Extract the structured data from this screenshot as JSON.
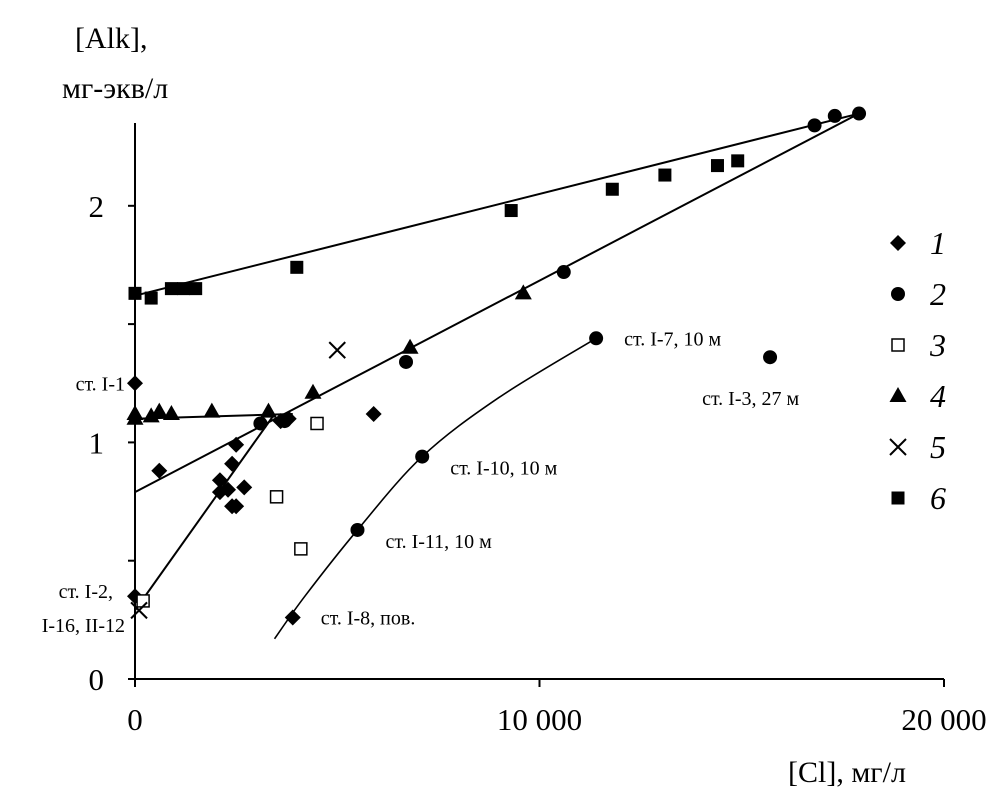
{
  "chart_data": {
    "type": "scatter",
    "title": "",
    "ylabel_line1": "[Alk],",
    "ylabel_line2": "мг-экв/л",
    "xlabel": "[Cl], мг/л",
    "xlim": [
      0,
      20000
    ],
    "ylim": [
      0,
      2.35
    ],
    "x_ticks": [
      {
        "value": 0,
        "label": "0"
      },
      {
        "value": 10000,
        "label": "10 000"
      },
      {
        "value": 20000,
        "label": "20 000"
      }
    ],
    "y_ticks": [
      {
        "value": 0,
        "label": "0",
        "labeled": true
      },
      {
        "value": 0.5,
        "label": "",
        "labeled": false
      },
      {
        "value": 1,
        "label": "1",
        "labeled": true
      },
      {
        "value": 1.5,
        "label": "",
        "labeled": false
      },
      {
        "value": 2,
        "label": "2",
        "labeled": true
      }
    ],
    "series": [
      {
        "name": "1",
        "marker": "diamond",
        "points": [
          [
            0,
            1.25
          ],
          [
            0,
            0.35
          ],
          [
            600,
            0.88
          ],
          [
            2100,
            0.84
          ],
          [
            2100,
            0.79
          ],
          [
            2300,
            0.8
          ],
          [
            2400,
            0.91
          ],
          [
            2500,
            0.99
          ],
          [
            2400,
            0.73
          ],
          [
            2500,
            0.73
          ],
          [
            2700,
            0.81
          ],
          [
            3600,
            1.09
          ],
          [
            3800,
            1.1
          ],
          [
            5900,
            1.12
          ],
          [
            3900,
            0.26
          ]
        ]
      },
      {
        "name": "2",
        "marker": "circle",
        "points": [
          [
            3100,
            1.08
          ],
          [
            3700,
            1.09
          ],
          [
            6700,
            1.34
          ],
          [
            10600,
            1.72
          ],
          [
            11400,
            1.44
          ],
          [
            7100,
            0.94
          ],
          [
            5500,
            0.63
          ],
          [
            15700,
            1.36
          ],
          [
            16800,
            2.34
          ],
          [
            17300,
            2.38
          ],
          [
            17900,
            2.39
          ]
        ]
      },
      {
        "name": "3",
        "marker": "square-open",
        "points": [
          [
            200,
            0.33
          ],
          [
            3500,
            0.77
          ],
          [
            4500,
            1.08
          ],
          [
            4100,
            0.55
          ]
        ]
      },
      {
        "name": "4",
        "marker": "triangle",
        "points": [
          [
            0,
            1.12
          ],
          [
            0,
            1.1
          ],
          [
            400,
            1.11
          ],
          [
            600,
            1.13
          ],
          [
            900,
            1.12
          ],
          [
            1900,
            1.13
          ],
          [
            3300,
            1.13
          ],
          [
            4400,
            1.21
          ],
          [
            6800,
            1.4
          ],
          [
            9600,
            1.63
          ]
        ]
      },
      {
        "name": "5",
        "marker": "cross",
        "points": [
          [
            100,
            0.29
          ],
          [
            5000,
            1.39
          ]
        ]
      },
      {
        "name": "6",
        "marker": "square",
        "points": [
          [
            0,
            1.63
          ],
          [
            400,
            1.61
          ],
          [
            900,
            1.65
          ],
          [
            1200,
            1.65
          ],
          [
            1500,
            1.65
          ],
          [
            4000,
            1.74
          ],
          [
            9300,
            1.98
          ],
          [
            11800,
            2.07
          ],
          [
            13100,
            2.13
          ],
          [
            14400,
            2.17
          ],
          [
            14900,
            2.19
          ]
        ]
      }
    ],
    "trend_lines": [
      {
        "name": "6-fit",
        "shape": "line",
        "points": [
          [
            0,
            1.62
          ],
          [
            17900,
            2.39
          ]
        ]
      },
      {
        "name": "2-fit",
        "shape": "line",
        "points": [
          [
            0,
            0.79
          ],
          [
            17900,
            2.39
          ]
        ]
      },
      {
        "name": "1-plateau-fit",
        "shape": "line",
        "points": [
          [
            0,
            1.1
          ],
          [
            3900,
            1.12
          ]
        ]
      },
      {
        "name": "1-steep-fit",
        "shape": "line",
        "points": [
          [
            0,
            0.29
          ],
          [
            3450,
            1.12
          ]
        ]
      },
      {
        "name": "station-curve",
        "shape": "curve",
        "points": [
          [
            3450,
            0.17
          ],
          [
            4200,
            0.35
          ],
          [
            5500,
            0.63
          ],
          [
            7100,
            0.94
          ],
          [
            9000,
            1.19
          ],
          [
            11400,
            1.44
          ]
        ]
      }
    ],
    "annotations": [
      {
        "text": "ст. I-1",
        "x": 0,
        "y": 1.25,
        "anchor": "left-of"
      },
      {
        "text": "ст. I-2,",
        "x": 0,
        "y": 0.35,
        "anchor": "left-of-upper"
      },
      {
        "text": "I-16, II-12",
        "x": 0,
        "y": 0.35,
        "anchor": "left-of-lower"
      },
      {
        "text": "ст. I-7, 10 м",
        "x": 11400,
        "y": 1.44,
        "anchor": "right-of"
      },
      {
        "text": "ст. I-3, 27 м",
        "x": 15700,
        "y": 1.36,
        "anchor": "below-right"
      },
      {
        "text": "ст. I-10, 10 м",
        "x": 7100,
        "y": 0.94,
        "anchor": "right-of-below"
      },
      {
        "text": "ст. I-11, 10 м",
        "x": 5500,
        "y": 0.63,
        "anchor": "right-of-below"
      },
      {
        "text": "ст. I-8, пов.",
        "x": 3900,
        "y": 0.26,
        "anchor": "right-of"
      }
    ],
    "legend": {
      "position": "right",
      "entries": [
        "1",
        "2",
        "3",
        "4",
        "5",
        "6"
      ]
    }
  }
}
